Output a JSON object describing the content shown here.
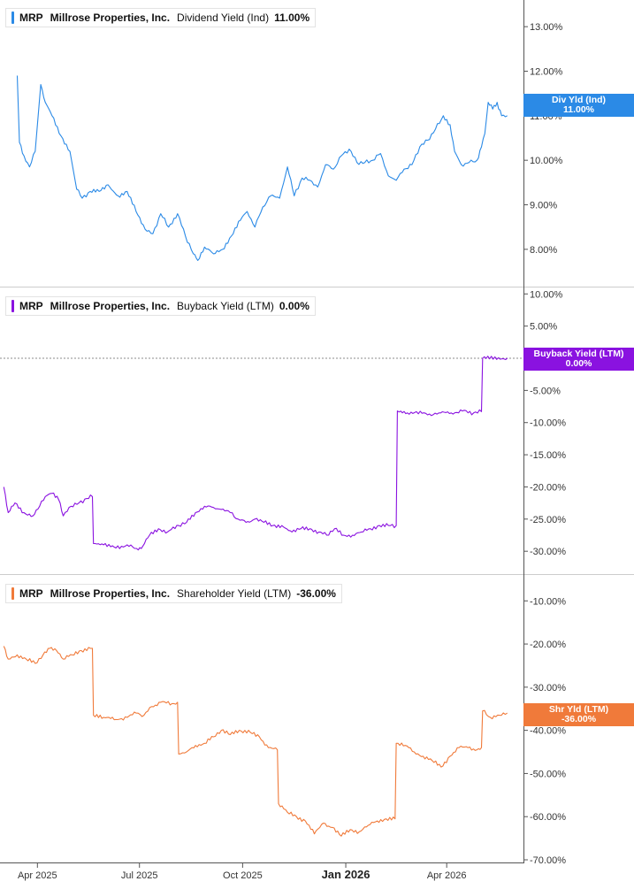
{
  "ticker": "MRP",
  "company": "Millrose Properties, Inc.",
  "x_axis": {
    "labels": [
      "Apr 2025",
      "Jul 2025",
      "Oct 2025",
      "Jan 2026",
      "Apr 2026"
    ],
    "bold_label": "Jan 2026"
  },
  "colors": {
    "div": "#2b8ae6",
    "buyback": "#8a12e0",
    "shareholder": "#f07a3a",
    "axis": "#555555",
    "divider": "#cccccc"
  },
  "chart_data": [
    {
      "type": "line",
      "metric": "Dividend Yield (Ind)",
      "value_label": "11.00%",
      "badge": {
        "line1": "Div Yld (Ind)",
        "line2": "11.00%"
      },
      "y_ticks": [
        "13.00%",
        "12.00%",
        "11.00%",
        "10.00%",
        "9.00%",
        "8.00%"
      ],
      "ylim": [
        7.6,
        13.4
      ],
      "series": [
        {
          "points": [
            [
              "2025-03-14",
              11.9
            ],
            [
              "2025-03-16",
              10.4
            ],
            [
              "2025-03-20",
              10.1
            ],
            [
              "2025-03-25",
              9.85
            ],
            [
              "2025-03-30",
              10.2
            ],
            [
              "2025-04-04",
              11.7
            ],
            [
              "2025-04-08",
              11.3
            ],
            [
              "2025-04-14",
              11.0
            ],
            [
              "2025-04-22",
              10.55
            ],
            [
              "2025-04-30",
              10.2
            ],
            [
              "2025-05-06",
              9.35
            ],
            [
              "2025-05-11",
              9.15
            ],
            [
              "2025-05-18",
              9.3
            ],
            [
              "2025-05-26",
              9.3
            ],
            [
              "2025-06-03",
              9.45
            ],
            [
              "2025-06-12",
              9.2
            ],
            [
              "2025-06-20",
              9.3
            ],
            [
              "2025-06-28",
              8.85
            ],
            [
              "2025-07-06",
              8.45
            ],
            [
              "2025-07-13",
              8.35
            ],
            [
              "2025-07-20",
              8.8
            ],
            [
              "2025-07-27",
              8.5
            ],
            [
              "2025-08-04",
              8.8
            ],
            [
              "2025-08-11",
              8.3
            ],
            [
              "2025-08-18",
              7.9
            ],
            [
              "2025-08-22",
              7.75
            ],
            [
              "2025-08-28",
              8.05
            ],
            [
              "2025-09-05",
              7.9
            ],
            [
              "2025-09-13",
              8.0
            ],
            [
              "2025-09-21",
              8.3
            ],
            [
              "2025-09-29",
              8.65
            ],
            [
              "2025-10-05",
              8.85
            ],
            [
              "2025-10-12",
              8.5
            ],
            [
              "2025-10-19",
              8.95
            ],
            [
              "2025-10-26",
              9.2
            ],
            [
              "2025-11-03",
              9.15
            ],
            [
              "2025-11-10",
              9.85
            ],
            [
              "2025-11-16",
              9.2
            ],
            [
              "2025-11-23",
              9.6
            ],
            [
              "2025-11-30",
              9.55
            ],
            [
              "2025-12-07",
              9.4
            ],
            [
              "2025-12-14",
              9.9
            ],
            [
              "2025-12-21",
              9.8
            ],
            [
              "2025-12-28",
              10.1
            ],
            [
              "2026-01-04",
              10.25
            ],
            [
              "2026-01-11",
              9.95
            ],
            [
              "2026-01-18",
              9.95
            ],
            [
              "2026-01-25",
              10.0
            ],
            [
              "2026-02-01",
              10.15
            ],
            [
              "2026-02-08",
              9.65
            ],
            [
              "2026-02-15",
              9.55
            ],
            [
              "2026-02-22",
              9.8
            ],
            [
              "2026-03-01",
              9.9
            ],
            [
              "2026-03-08",
              10.3
            ],
            [
              "2026-03-15",
              10.45
            ],
            [
              "2026-03-22",
              10.7
            ],
            [
              "2026-03-29",
              11.0
            ],
            [
              "2026-04-04",
              10.8
            ],
            [
              "2026-04-08",
              10.2
            ],
            [
              "2026-04-14",
              9.9
            ],
            [
              "2026-04-21",
              9.95
            ],
            [
              "2026-04-28",
              10.0
            ],
            [
              "2026-05-02",
              10.3
            ],
            [
              "2026-05-05",
              10.6
            ],
            [
              "2026-05-08",
              11.3
            ],
            [
              "2026-05-12",
              11.15
            ],
            [
              "2026-05-16",
              11.3
            ],
            [
              "2026-05-20",
              11.0
            ],
            [
              "2026-05-25",
              11.0
            ]
          ]
        }
      ]
    },
    {
      "type": "line",
      "metric": "Buyback Yield (LTM)",
      "value_label": "0.00%",
      "badge": {
        "line1": "Buyback Yield (LTM)",
        "line2": "0.00%"
      },
      "y_ticks": [
        "10.00%",
        "5.00%",
        "-5.00%",
        "-10.00%",
        "-15.00%",
        "-20.00%",
        "-25.00%",
        "-30.00%"
      ],
      "ylim": [
        -33,
        11
      ],
      "reference_line": 0,
      "series": [
        {
          "points": [
            [
              "2025-03-02",
              -20.0
            ],
            [
              "2025-03-06",
              -24.0
            ],
            [
              "2025-03-12",
              -22.5
            ],
            [
              "2025-03-20",
              -24.0
            ],
            [
              "2025-03-28",
              -24.5
            ],
            [
              "2025-04-03",
              -23.0
            ],
            [
              "2025-04-08",
              -21.5
            ],
            [
              "2025-04-14",
              -21.0
            ],
            [
              "2025-04-20",
              -22.0
            ],
            [
              "2025-04-24",
              -24.5
            ],
            [
              "2025-05-01",
              -23.0
            ],
            [
              "2025-05-08",
              -22.5
            ],
            [
              "2025-05-15",
              -21.8
            ],
            [
              "2025-05-20",
              -21.5
            ],
            [
              "2025-05-21",
              -28.8
            ],
            [
              "2025-05-30",
              -29.0
            ],
            [
              "2025-06-10",
              -29.5
            ],
            [
              "2025-06-20",
              -29.0
            ],
            [
              "2025-06-30",
              -29.8
            ],
            [
              "2025-07-04",
              -29.2
            ],
            [
              "2025-07-10",
              -27.5
            ],
            [
              "2025-07-18",
              -26.5
            ],
            [
              "2025-07-26",
              -27.0
            ],
            [
              "2025-08-05",
              -26.0
            ],
            [
              "2025-08-12",
              -25.5
            ],
            [
              "2025-08-20",
              -24.0
            ],
            [
              "2025-08-28",
              -23.0
            ],
            [
              "2025-09-05",
              -23.2
            ],
            [
              "2025-09-12",
              -23.5
            ],
            [
              "2025-09-20",
              -24.0
            ],
            [
              "2025-09-27",
              -25.0
            ],
            [
              "2025-10-04",
              -25.5
            ],
            [
              "2025-10-12",
              -25.0
            ],
            [
              "2025-10-20",
              -25.5
            ],
            [
              "2025-10-28",
              -26.0
            ],
            [
              "2025-11-05",
              -26.0
            ],
            [
              "2025-11-14",
              -27.0
            ],
            [
              "2025-11-22",
              -26.5
            ],
            [
              "2025-11-30",
              -26.5
            ],
            [
              "2025-12-08",
              -27.0
            ],
            [
              "2025-12-15",
              -27.5
            ],
            [
              "2025-12-22",
              -26.5
            ],
            [
              "2025-12-30",
              -27.5
            ],
            [
              "2026-01-07",
              -27.5
            ],
            [
              "2026-01-15",
              -27.0
            ],
            [
              "2026-01-23",
              -26.5
            ],
            [
              "2026-01-31",
              -26.0
            ],
            [
              "2026-02-08",
              -26.0
            ],
            [
              "2026-02-15",
              -26.0
            ],
            [
              "2026-02-16",
              -8.2
            ],
            [
              "2026-02-25",
              -8.5
            ],
            [
              "2026-03-05",
              -8.3
            ],
            [
              "2026-03-15",
              -8.8
            ],
            [
              "2026-03-25",
              -8.5
            ],
            [
              "2026-04-05",
              -8.5
            ],
            [
              "2026-04-15",
              -8.2
            ],
            [
              "2026-04-25",
              -8.5
            ],
            [
              "2026-05-02",
              -8.3
            ],
            [
              "2026-05-03",
              0.0
            ],
            [
              "2026-05-25",
              0.0
            ]
          ]
        }
      ]
    },
    {
      "type": "line",
      "metric": "Shareholder Yield (LTM)",
      "value_label": "-36.00%",
      "badge": {
        "line1": "Shr Yld (LTM)",
        "line2": "-36.00%"
      },
      "y_ticks": [
        "-10.00%",
        "-20.00%",
        "-30.00%",
        "-40.00%",
        "-50.00%",
        "-60.00%",
        "-70.00%"
      ],
      "ylim": [
        -70,
        -4
      ],
      "series": [
        {
          "points": [
            [
              "2025-03-02",
              -20.5
            ],
            [
              "2025-03-06",
              -23.5
            ],
            [
              "2025-03-14",
              -22.5
            ],
            [
              "2025-03-22",
              -23.5
            ],
            [
              "2025-03-30",
              -24.5
            ],
            [
              "2025-04-06",
              -22.5
            ],
            [
              "2025-04-12",
              -21.0
            ],
            [
              "2025-04-18",
              -21.5
            ],
            [
              "2025-04-24",
              -23.5
            ],
            [
              "2025-05-02",
              -22.5
            ],
            [
              "2025-05-10",
              -21.5
            ],
            [
              "2025-05-20",
              -21.0
            ],
            [
              "2025-05-21",
              -36.5
            ],
            [
              "2025-05-30",
              -37.0
            ],
            [
              "2025-06-10",
              -37.5
            ],
            [
              "2025-06-20",
              -37.0
            ],
            [
              "2025-06-28",
              -36.0
            ],
            [
              "2025-07-05",
              -36.5
            ],
            [
              "2025-07-12",
              -34.5
            ],
            [
              "2025-07-20",
              -33.5
            ],
            [
              "2025-07-30",
              -33.8
            ],
            [
              "2025-08-04",
              -33.5
            ],
            [
              "2025-08-05",
              -45.5
            ],
            [
              "2025-08-12",
              -45.0
            ],
            [
              "2025-08-20",
              -43.5
            ],
            [
              "2025-08-28",
              -43.0
            ],
            [
              "2025-09-05",
              -41.5
            ],
            [
              "2025-09-12",
              -40.0
            ],
            [
              "2025-09-20",
              -41.0
            ],
            [
              "2025-09-28",
              -40.0
            ],
            [
              "2025-10-08",
              -40.5
            ],
            [
              "2025-10-16",
              -41.5
            ],
            [
              "2025-10-24",
              -44.0
            ],
            [
              "2025-11-01",
              -44.5
            ],
            [
              "2025-11-02",
              -57.0
            ],
            [
              "2025-11-10",
              -59.0
            ],
            [
              "2025-11-18",
              -60.0
            ],
            [
              "2025-11-26",
              -61.0
            ],
            [
              "2025-12-04",
              -64.0
            ],
            [
              "2025-12-12",
              -61.5
            ],
            [
              "2025-12-20",
              -62.5
            ],
            [
              "2025-12-28",
              -64.5
            ],
            [
              "2026-01-05",
              -63.0
            ],
            [
              "2026-01-13",
              -63.5
            ],
            [
              "2026-01-21",
              -62.0
            ],
            [
              "2026-01-29",
              -61.0
            ],
            [
              "2026-02-06",
              -60.5
            ],
            [
              "2026-02-14",
              -60.5
            ],
            [
              "2026-02-15",
              -43.0
            ],
            [
              "2026-02-23",
              -43.5
            ],
            [
              "2026-03-03",
              -45.0
            ],
            [
              "2026-03-11",
              -46.0
            ],
            [
              "2026-03-19",
              -47.0
            ],
            [
              "2026-03-27",
              -48.5
            ],
            [
              "2026-04-04",
              -46.0
            ],
            [
              "2026-04-12",
              -44.0
            ],
            [
              "2026-04-20",
              -44.0
            ],
            [
              "2026-04-28",
              -44.5
            ],
            [
              "2026-05-02",
              -44.0
            ],
            [
              "2026-05-03",
              -35.5
            ],
            [
              "2026-05-10",
              -37.0
            ],
            [
              "2026-05-18",
              -36.5
            ],
            [
              "2026-05-25",
              -36.0
            ]
          ]
        }
      ]
    }
  ]
}
